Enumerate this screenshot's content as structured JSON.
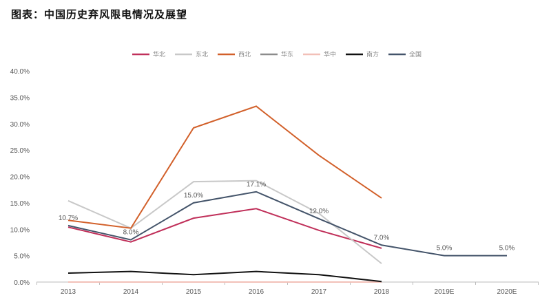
{
  "title": "图表：中国历史弃风限电情况及展望",
  "chart_data": {
    "type": "line",
    "title": "图表：中国历史弃风限电情况及展望",
    "xlabel": "",
    "ylabel": "",
    "categories": [
      "2013",
      "2014",
      "2015",
      "2016",
      "2017",
      "2018",
      "2019E",
      "2020E"
    ],
    "ylim": [
      0,
      40
    ],
    "yticks": [
      "0.0%",
      "5.0%",
      "10.0%",
      "15.0%",
      "20.0%",
      "25.0%",
      "30.0%",
      "35.0%",
      "40.0%"
    ],
    "grid": false,
    "legend": "top-center",
    "series": [
      {
        "name": "华北",
        "color": "#c0305a",
        "values": [
          10.4,
          7.6,
          12.1,
          13.9,
          9.8,
          6.4,
          null,
          null
        ]
      },
      {
        "name": "东北",
        "color": "#c8c8c8",
        "values": [
          15.4,
          10.2,
          19.0,
          19.2,
          13.0,
          3.5,
          null,
          null
        ]
      },
      {
        "name": "西北",
        "color": "#d2602a",
        "values": [
          11.7,
          10.2,
          29.2,
          33.3,
          24.0,
          15.9,
          null,
          null
        ]
      },
      {
        "name": "华东",
        "color": "#8c8c8c",
        "values": [
          0,
          0,
          0,
          0,
          0,
          0,
          null,
          null
        ]
      },
      {
        "name": "华中",
        "color": "#f2c0b8",
        "values": [
          0,
          0,
          0,
          0,
          0,
          0,
          null,
          null
        ]
      },
      {
        "name": "南方",
        "color": "#111111",
        "values": [
          1.7,
          2.0,
          1.4,
          2.0,
          1.4,
          0.1,
          null,
          null
        ]
      },
      {
        "name": "全国",
        "color": "#44546a",
        "values": [
          10.7,
          8.0,
          15.0,
          17.1,
          12.0,
          7.0,
          5.0,
          5.0
        ],
        "data_labels": [
          "10.7%",
          "8.0%",
          "15.0%",
          "17.1%",
          "12.0%",
          "7.0%",
          "5.0%",
          "5.0%"
        ]
      }
    ]
  }
}
